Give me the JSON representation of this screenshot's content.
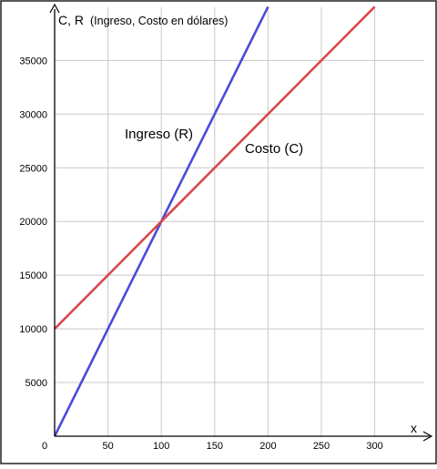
{
  "chart_data": {
    "type": "line",
    "title": "",
    "ylabel_prefix": "C, R",
    "ylabel_suffix": "(Ingreso, Costo en dólares)",
    "xlabel": "x",
    "xlim": [
      0,
      350
    ],
    "ylim": [
      0,
      40000
    ],
    "x_ticks": [
      0,
      50,
      100,
      150,
      200,
      250,
      300
    ],
    "x_tick_labels": [
      "0",
      "50",
      "100",
      "150",
      "200",
      "250",
      "300"
    ],
    "y_ticks": [
      5000,
      10000,
      15000,
      20000,
      25000,
      30000,
      35000
    ],
    "y_tick_labels": [
      "5000",
      "10000",
      "15000",
      "20000",
      "25000",
      "30000",
      "35000"
    ],
    "grid": true,
    "series": [
      {
        "name": "Ingreso (R)",
        "color": "#4b4bdc",
        "x": [
          0,
          100,
          200
        ],
        "y": [
          0,
          20000,
          40000
        ]
      },
      {
        "name": "Costo (C)",
        "color": "#d9474b",
        "x": [
          0,
          100,
          300
        ],
        "y": [
          10000,
          20000,
          40000
        ]
      }
    ]
  }
}
